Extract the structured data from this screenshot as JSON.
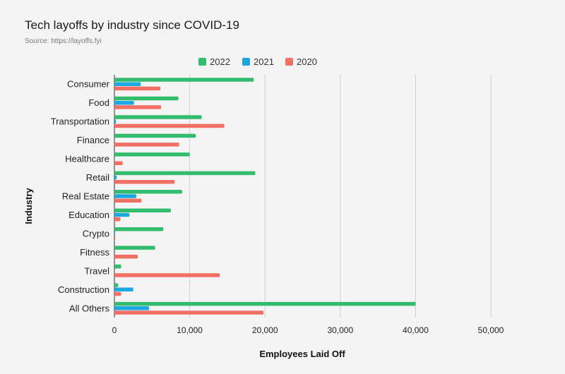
{
  "chart_data": {
    "type": "bar",
    "orientation": "horizontal",
    "title": "Tech layoffs by industry since COVID-19",
    "subtitle": "Source: https://layoffs.fyi",
    "xlabel": "Employees Laid Off",
    "ylabel": "Industry",
    "xlim": [
      0,
      50000
    ],
    "xticks": [
      0,
      10000,
      20000,
      30000,
      40000,
      50000
    ],
    "xtick_labels": [
      "0",
      "10,000",
      "20,000",
      "30,000",
      "40,000",
      "50,000"
    ],
    "grid": true,
    "legend_position": "top-center",
    "categories": [
      "Consumer",
      "Food",
      "Transportation",
      "Finance",
      "Healthcare",
      "Retail",
      "Real Estate",
      "Education",
      "Crypto",
      "Fitness",
      "Travel",
      "Construction",
      "All Others"
    ],
    "series": [
      {
        "name": "2022",
        "color": "#33bb6e",
        "values": [
          18500,
          8500,
          11600,
          10800,
          10000,
          18700,
          9000,
          7500,
          6500,
          5400,
          900,
          500,
          40000
        ]
      },
      {
        "name": "2021",
        "color": "#1ba8e0",
        "values": [
          3500,
          2600,
          200,
          0,
          0,
          300,
          2900,
          2000,
          100,
          0,
          0,
          2500,
          4600
        ]
      },
      {
        "name": "2020",
        "color": "#f27063",
        "values": [
          6100,
          6200,
          14600,
          8600,
          1100,
          8000,
          3600,
          800,
          100,
          3100,
          14000,
          900,
          19800
        ]
      }
    ]
  }
}
